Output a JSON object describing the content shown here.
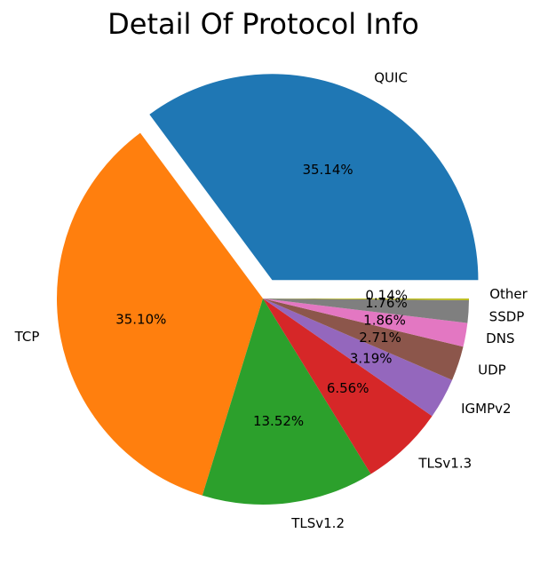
{
  "chart_data": {
    "type": "pie",
    "title": "Detail Of Protocol Info",
    "start_angle_deg": 0,
    "direction": "counterclockwise",
    "slices": [
      {
        "label": "QUIC",
        "value": 35.14,
        "pct_label": "35.14%",
        "color": "#1f77b4",
        "explode": true
      },
      {
        "label": "TCP",
        "value": 35.1,
        "pct_label": "35.10%",
        "color": "#ff7f0e"
      },
      {
        "label": "TLSv1.2",
        "value": 13.52,
        "pct_label": "13.52%",
        "color": "#2ca02c"
      },
      {
        "label": "TLSv1.3",
        "value": 6.56,
        "pct_label": "6.56%",
        "color": "#d62728"
      },
      {
        "label": "IGMPv2",
        "value": 3.19,
        "pct_label": "3.19%",
        "color": "#9467bd"
      },
      {
        "label": "UDP",
        "value": 2.71,
        "pct_label": "2.71%",
        "color": "#8c564b"
      },
      {
        "label": "DNS",
        "value": 1.86,
        "pct_label": "1.86%",
        "color": "#e377c2"
      },
      {
        "label": "SSDP",
        "value": 1.76,
        "pct_label": "1.76%",
        "color": "#7f7f7f"
      },
      {
        "label": "Other",
        "value": 0.14,
        "pct_label": "0.14%",
        "color": "#bcbd22"
      }
    ]
  }
}
